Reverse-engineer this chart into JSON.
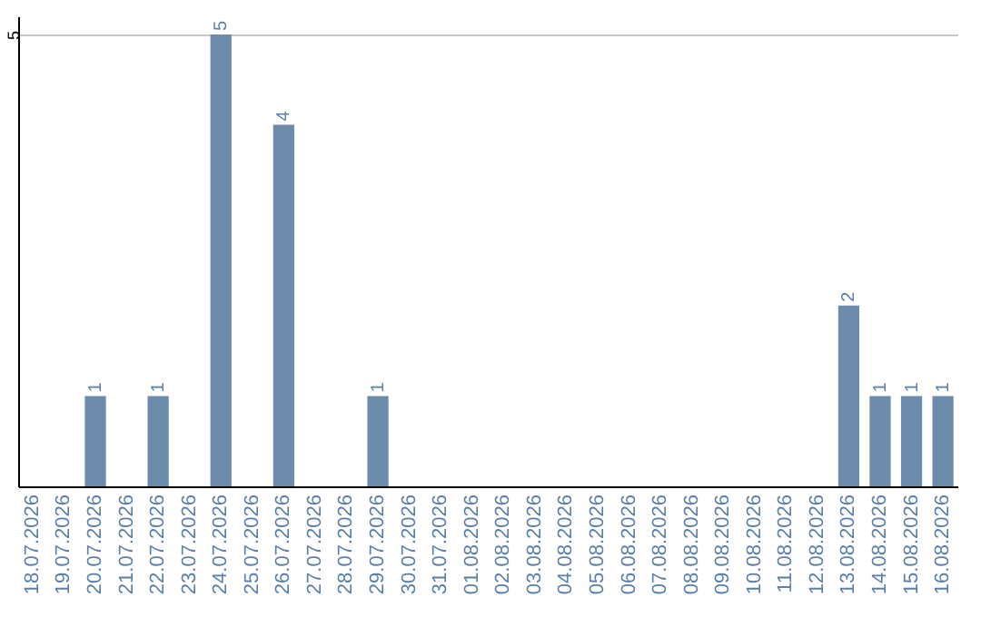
{
  "chart_data": {
    "type": "bar",
    "categories": [
      "18.07.2026",
      "19.07.2026",
      "20.07.2026",
      "21.07.2026",
      "22.07.2026",
      "23.07.2026",
      "24.07.2026",
      "25.07.2026",
      "26.07.2026",
      "27.07.2026",
      "28.07.2026",
      "29.07.2026",
      "30.07.2026",
      "31.07.2026",
      "01.08.2026",
      "02.08.2026",
      "03.08.2026",
      "04.08.2026",
      "05.08.2026",
      "06.08.2026",
      "07.08.2026",
      "08.08.2026",
      "09.08.2026",
      "10.08.2026",
      "11.08.2026",
      "12.08.2026",
      "13.08.2026",
      "14.08.2026",
      "15.08.2026",
      "16.08.2026"
    ],
    "values": [
      null,
      null,
      1,
      null,
      1,
      null,
      5,
      null,
      4,
      null,
      null,
      1,
      null,
      null,
      null,
      null,
      null,
      null,
      null,
      null,
      null,
      null,
      null,
      null,
      null,
      null,
      2,
      1,
      1,
      1
    ],
    "color": "#6d8bab",
    "ylim": [
      0,
      5.2
    ],
    "yticks": [
      5
    ],
    "grid": "y",
    "data_labels": true
  }
}
